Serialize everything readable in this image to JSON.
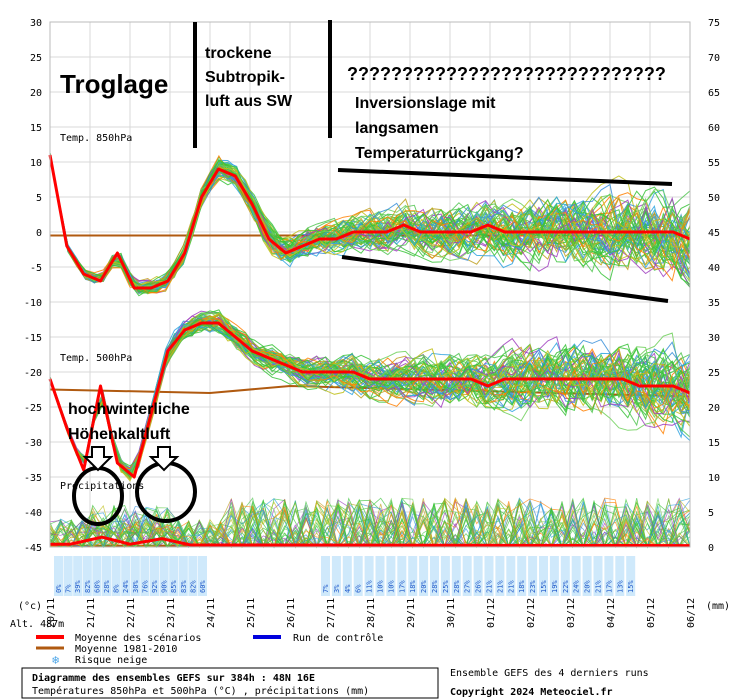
{
  "chart_data": {
    "type": "line",
    "x_dates": [
      "20/11",
      "21/11",
      "22/11",
      "23/11",
      "24/11",
      "25/11",
      "26/11",
      "27/11",
      "28/11",
      "29/11",
      "30/11",
      "01/12",
      "02/12",
      "03/12",
      "04/12",
      "05/12",
      "06/12"
    ],
    "yleft_ticks": [
      30,
      25,
      20,
      15,
      10,
      5,
      0,
      -5,
      -10,
      -15,
      -20,
      -25,
      -30,
      -35,
      -40,
      -45
    ],
    "yright_ticks": [
      75,
      70,
      65,
      60,
      55,
      50,
      45,
      40,
      35,
      30,
      25,
      20,
      15,
      10,
      5,
      0
    ],
    "yleft_unit": "(°c)",
    "yright_unit": "(mm)",
    "label_t850": "Temp. 850hPa",
    "label_t500": "Temp. 500hPa",
    "label_precip": "Précipitations",
    "altitude_label": "Alt. 487m",
    "series": [
      {
        "name": "Moyenne des scénarios",
        "color": "#ff0000",
        "t850_mean": [
          11,
          -2,
          -6,
          -7,
          -3,
          -8,
          -8,
          -7,
          -3,
          5,
          9,
          8,
          4,
          -1,
          -3,
          -2,
          -1,
          -1,
          0,
          0,
          0,
          1,
          0,
          0,
          0,
          0,
          1,
          0,
          0,
          0,
          0,
          0,
          0,
          0,
          0,
          0,
          0,
          0,
          -1
        ],
        "t500_mean": [
          -21,
          -28,
          -34,
          -22,
          -33,
          -35,
          -26,
          -17,
          -14,
          -13,
          -13,
          -15,
          -17,
          -18,
          -19,
          -20,
          -20,
          -20,
          -20,
          -21,
          -21,
          -21,
          -21,
          -21,
          -21,
          -21,
          -22,
          -21,
          -21,
          -21,
          -21,
          -21,
          -21,
          -21,
          -21,
          -22,
          -22,
          -22,
          -23
        ]
      },
      {
        "name": "Moyenne 1981-2010",
        "color": "#b05a10",
        "t850_clim": -0.5,
        "t500_clim": -23.5
      },
      {
        "name": "Run de contrôle",
        "color": "#0000dd"
      }
    ],
    "snow_risk_pct": [
      "0%",
      "7%",
      "39%",
      "82%",
      "68%",
      "28%",
      "8%",
      "24%",
      "30%",
      "76%",
      "92%",
      "90%",
      "85%",
      "83%",
      "82%",
      "60%",
      "7%",
      "3%",
      "4%",
      "6%",
      "11%",
      "10%",
      "10%",
      "17%",
      "18%",
      "20%",
      "28%",
      "25%",
      "28%",
      "27%",
      "26%",
      "21%",
      "21%",
      "21%",
      "18%",
      "23%",
      "15%",
      "19%",
      "22%",
      "24%",
      "20%",
      "21%",
      "17%",
      "13%",
      "15%"
    ]
  },
  "legend": {
    "mean_label": "Moyenne des scénarios",
    "control_label": "Run de contrôle",
    "clim_label": "Moyenne 1981-2010",
    "snow_label": "Risque neige",
    "colors": {
      "mean": "#ff0000",
      "control": "#0000dd",
      "clim": "#b05a10",
      "snow": "#4da6e8"
    }
  },
  "annotations": {
    "troglage": "Troglage",
    "subtropik": [
      "trockene",
      "Subtropik-",
      "luft aus SW"
    ],
    "questions": "?????????????????????????????",
    "inversion": [
      "Inversionslage mit",
      "langsamen",
      "Temperaturrückgang?"
    ],
    "cold": [
      "hochwinterliche",
      "Höhenkaltluft"
    ]
  },
  "footer": {
    "title": "Diagramme des ensembles GEFS sur 384h : 48N 16E",
    "subtitle": "Températures 850hPa et 500hPa (°C) , précipitations (mm)",
    "runs": "Ensemble GEFS des 4 derniers runs",
    "copyright": "Copyright 2024 Meteociel.fr"
  }
}
